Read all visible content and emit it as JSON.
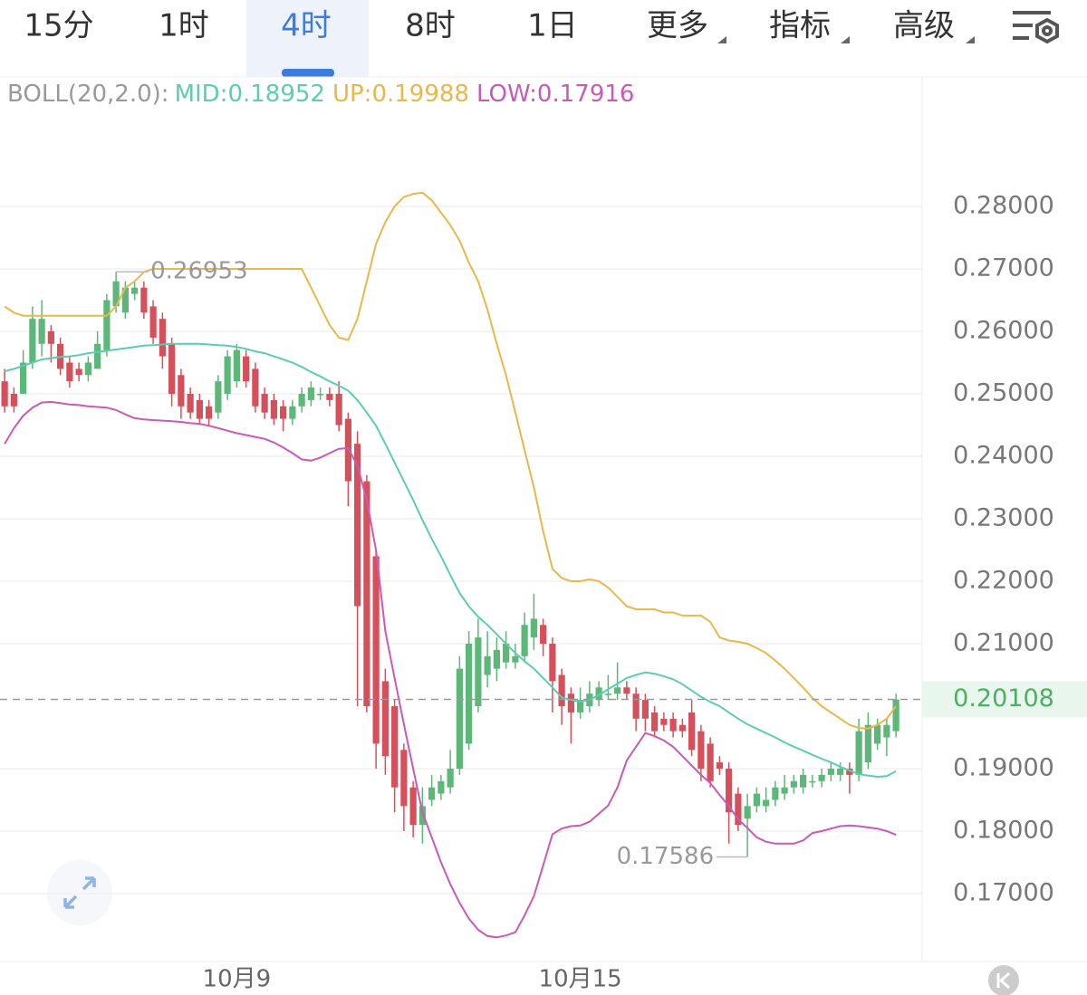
{
  "tabs": {
    "items": [
      "15分",
      "1时",
      "4时",
      "8时",
      "1日",
      "更多",
      "指标",
      "高级"
    ],
    "active": 2
  },
  "chart_data": {
    "type": "candlestick",
    "indicator": "BOLL(20,2.0):",
    "categories": [
      null,
      null,
      null,
      null,
      null,
      null,
      null,
      null,
      null,
      null,
      null,
      null,
      null,
      null,
      null,
      null,
      null,
      null,
      null,
      null,
      null,
      null,
      null,
      null,
      null,
      "10月9",
      null,
      null,
      null,
      null,
      null,
      null,
      null,
      null,
      null,
      null,
      null,
      null,
      null,
      null,
      null,
      null,
      null,
      null,
      null,
      null,
      null,
      null,
      null,
      null,
      null,
      null,
      null,
      null,
      null,
      null,
      null,
      null,
      null,
      null,
      null,
      null,
      "10月15",
      null,
      null,
      null,
      null,
      null,
      null,
      null,
      null,
      null,
      null,
      null,
      null,
      null,
      null,
      null,
      null,
      null,
      null,
      null,
      null,
      null,
      null,
      null,
      null,
      null,
      null,
      null,
      null,
      null,
      null,
      null,
      null,
      null,
      null
    ],
    "open": [
      0.252,
      0.25,
      0.25,
      0.255,
      0.258,
      0.26,
      0.258,
      0.255,
      0.254,
      0.253,
      0.254,
      0.257,
      0.264,
      0.263,
      0.266,
      0.267,
      0.264,
      0.262,
      0.258,
      0.253,
      0.25,
      0.249,
      0.248,
      0.247,
      0.25,
      0.252,
      0.256,
      0.254,
      0.25,
      0.249,
      0.248,
      0.246,
      0.248,
      0.249,
      0.25,
      0.25,
      0.25,
      0.246,
      0.242,
      0.236,
      0.224,
      0.204,
      0.2,
      0.193,
      0.187,
      0.181,
      0.185,
      0.186,
      0.187,
      0.19,
      0.194,
      0.2,
      0.205,
      0.206,
      0.207,
      0.207,
      0.208,
      0.211,
      0.213,
      0.21,
      0.205,
      0.202,
      0.199,
      0.2,
      0.201,
      0.202,
      0.202,
      0.203,
      0.202,
      0.201,
      0.199,
      0.198,
      0.198,
      0.197,
      0.199,
      0.196,
      0.194,
      0.191,
      0.19,
      0.186,
      0.182,
      0.184,
      0.184,
      0.185,
      0.186,
      0.187,
      0.187,
      0.188,
      0.188,
      0.189,
      0.189,
      0.19,
      0.189,
      0.191,
      0.194,
      0.195,
      0.196
    ],
    "high": [
      0.254,
      0.251,
      0.257,
      0.264,
      0.265,
      0.261,
      0.259,
      0.256,
      0.255,
      0.256,
      0.26,
      0.266,
      0.26953,
      0.268,
      0.268,
      0.268,
      0.265,
      0.263,
      0.259,
      0.254,
      0.251,
      0.25,
      0.249,
      0.253,
      0.257,
      0.258,
      0.257,
      0.255,
      0.251,
      0.25,
      0.249,
      0.249,
      0.251,
      0.252,
      0.251,
      0.251,
      0.252,
      0.247,
      0.244,
      0.237,
      0.225,
      0.206,
      0.201,
      0.194,
      0.188,
      0.187,
      0.189,
      0.189,
      0.193,
      0.208,
      0.212,
      0.214,
      0.212,
      0.211,
      0.212,
      0.21,
      0.215,
      0.218,
      0.214,
      0.211,
      0.206,
      0.203,
      0.203,
      0.204,
      0.204,
      0.205,
      0.207,
      0.204,
      0.203,
      0.202,
      0.2,
      0.199,
      0.199,
      0.198,
      0.201,
      0.197,
      0.195,
      0.192,
      0.191,
      0.187,
      0.186,
      0.187,
      0.187,
      0.188,
      0.189,
      0.189,
      0.19,
      0.189,
      0.19,
      0.191,
      0.191,
      0.191,
      0.198,
      0.199,
      0.198,
      0.198,
      0.202
    ],
    "low": [
      0.247,
      0.247,
      0.25,
      0.254,
      0.256,
      0.255,
      0.253,
      0.251,
      0.252,
      0.252,
      0.254,
      0.256,
      0.263,
      0.262,
      0.265,
      0.262,
      0.258,
      0.254,
      0.248,
      0.246,
      0.246,
      0.245,
      0.245,
      0.246,
      0.249,
      0.251,
      0.251,
      0.247,
      0.246,
      0.245,
      0.244,
      0.245,
      0.247,
      0.248,
      0.249,
      0.248,
      0.244,
      0.232,
      0.2,
      0.199,
      0.19,
      0.189,
      0.183,
      0.18,
      0.179,
      0.178,
      0.184,
      0.185,
      0.186,
      0.189,
      0.193,
      0.199,
      0.203,
      0.204,
      0.206,
      0.206,
      0.207,
      0.209,
      0.208,
      0.199,
      0.197,
      0.194,
      0.198,
      0.199,
      0.2,
      0.201,
      0.201,
      0.201,
      0.196,
      0.196,
      0.195,
      0.196,
      0.195,
      0.195,
      0.192,
      0.188,
      0.187,
      0.189,
      0.178,
      0.18,
      0.17586,
      0.183,
      0.183,
      0.184,
      0.185,
      0.186,
      0.186,
      0.187,
      0.187,
      0.188,
      0.188,
      0.186,
      0.188,
      0.19,
      0.193,
      0.192,
      0.195
    ],
    "close": [
      0.248,
      0.248,
      0.255,
      0.262,
      0.262,
      0.258,
      0.254,
      0.252,
      0.253,
      0.255,
      0.258,
      0.265,
      0.268,
      0.267,
      0.267,
      0.263,
      0.259,
      0.256,
      0.25,
      0.248,
      0.247,
      0.246,
      0.246,
      0.252,
      0.256,
      0.257,
      0.252,
      0.248,
      0.247,
      0.246,
      0.246,
      0.248,
      0.25,
      0.251,
      0.25,
      0.249,
      0.245,
      0.236,
      0.216,
      0.2,
      0.194,
      0.192,
      0.187,
      0.184,
      0.181,
      0.184,
      0.187,
      0.188,
      0.19,
      0.206,
      0.21,
      0.211,
      0.208,
      0.209,
      0.21,
      0.208,
      0.213,
      0.214,
      0.21,
      0.204,
      0.2,
      0.199,
      0.201,
      0.202,
      0.203,
      0.202,
      0.203,
      0.202,
      0.198,
      0.198,
      0.196,
      0.197,
      0.196,
      0.196,
      0.193,
      0.19,
      0.188,
      0.19,
      0.183,
      0.181,
      0.184,
      0.186,
      0.185,
      0.187,
      0.187,
      0.188,
      0.189,
      0.188,
      0.189,
      0.19,
      0.19,
      0.189,
      0.196,
      0.197,
      0.197,
      0.197,
      0.20108
    ],
    "up_color": "#5db779",
    "down_color": "#d6505b",
    "series": [
      {
        "name": "MID:0.18952",
        "color": "#5ccdb0",
        "values": [
          0.2536,
          0.254,
          0.2545,
          0.255,
          0.2555,
          0.2557,
          0.2559,
          0.256,
          0.2562,
          0.2565,
          0.2567,
          0.2569,
          0.2571,
          0.2573,
          0.2575,
          0.2577,
          0.2578,
          0.2579,
          0.258,
          0.258,
          0.258,
          0.258,
          0.2579,
          0.2578,
          0.2577,
          0.2575,
          0.2572,
          0.2568,
          0.2565,
          0.256,
          0.2555,
          0.255,
          0.2543,
          0.2535,
          0.2528,
          0.252,
          0.2513,
          0.2505,
          0.249,
          0.247,
          0.2449,
          0.242,
          0.239,
          0.236,
          0.233,
          0.2298,
          0.2268,
          0.224,
          0.221,
          0.2181,
          0.216,
          0.2143,
          0.213,
          0.2115,
          0.21,
          0.2085,
          0.2072,
          0.206,
          0.2045,
          0.203,
          0.2014,
          0.201,
          0.2007,
          0.201,
          0.2018,
          0.2027,
          0.2036,
          0.2045,
          0.205,
          0.2054,
          0.2052,
          0.2048,
          0.2043,
          0.2035,
          0.2025,
          0.2015,
          0.2007,
          0.2,
          0.199,
          0.198,
          0.1971,
          0.1964,
          0.1957,
          0.195,
          0.1942,
          0.1935,
          0.1929,
          0.1922,
          0.1916,
          0.191,
          0.1903,
          0.1897,
          0.1891,
          0.1889,
          0.1887,
          0.1888,
          0.1896
        ]
      },
      {
        "name": "UP:0.19988",
        "color": "#e8b84a",
        "values": [
          0.264,
          0.263,
          0.2625,
          0.2625,
          0.2625,
          0.2625,
          0.2625,
          0.2625,
          0.2625,
          0.2625,
          0.2625,
          0.2625,
          0.264,
          0.267,
          0.268,
          0.2695,
          0.27,
          0.27,
          0.27,
          0.27,
          0.27,
          0.27,
          0.27,
          0.27,
          0.27,
          0.27,
          0.27,
          0.27,
          0.27,
          0.27,
          0.27,
          0.27,
          0.27,
          0.267,
          0.264,
          0.261,
          0.259,
          0.2586,
          0.262,
          0.268,
          0.274,
          0.2775,
          0.28,
          0.2815,
          0.282,
          0.2822,
          0.281,
          0.279,
          0.277,
          0.2745,
          0.271,
          0.268,
          0.2635,
          0.258,
          0.253,
          0.247,
          0.241,
          0.235,
          0.228,
          0.222,
          0.2205,
          0.22,
          0.22,
          0.2203,
          0.22,
          0.219,
          0.2175,
          0.216,
          0.2155,
          0.2155,
          0.2155,
          0.215,
          0.215,
          0.2145,
          0.2145,
          0.2145,
          0.2135,
          0.211,
          0.2105,
          0.2103,
          0.21,
          0.2093,
          0.2085,
          0.2073,
          0.206,
          0.2045,
          0.203,
          0.2013,
          0.2,
          0.199,
          0.198,
          0.197,
          0.1965,
          0.1964,
          0.197,
          0.198,
          0.2
        ]
      },
      {
        "name": "LOW:0.17916",
        "color": "#c95ab6",
        "values": [
          0.242,
          0.2445,
          0.2465,
          0.2478,
          0.2486,
          0.2487,
          0.2485,
          0.2483,
          0.2482,
          0.248,
          0.2479,
          0.2478,
          0.2474,
          0.2467,
          0.2461,
          0.2459,
          0.2458,
          0.2457,
          0.2456,
          0.2455,
          0.2453,
          0.2452,
          0.2449,
          0.2445,
          0.2441,
          0.2437,
          0.2434,
          0.2431,
          0.2428,
          0.2422,
          0.2414,
          0.2405,
          0.2395,
          0.2393,
          0.2398,
          0.2405,
          0.2412,
          0.2413,
          0.2385,
          0.233,
          0.225,
          0.212,
          0.2045,
          0.1971,
          0.19,
          0.183,
          0.179,
          0.175,
          0.1715,
          0.1685,
          0.166,
          0.1642,
          0.1632,
          0.163,
          0.1633,
          0.1638,
          0.1665,
          0.1696,
          0.1745,
          0.1795,
          0.1804,
          0.1808,
          0.1809,
          0.1815,
          0.1828,
          0.1841,
          0.187,
          0.1913,
          0.1935,
          0.1957,
          0.1952,
          0.1945,
          0.1935,
          0.192,
          0.1905,
          0.189,
          0.1877,
          0.1858,
          0.184,
          0.1819,
          0.1805,
          0.179,
          0.1783,
          0.178,
          0.178,
          0.178,
          0.1785,
          0.1797,
          0.18,
          0.1804,
          0.1808,
          0.1809,
          0.1808,
          0.1806,
          0.1804,
          0.18,
          0.1794
        ]
      }
    ],
    "ylim": [
      0.15942,
      0.30072
    ],
    "yticks": [
      {
        "value": 0.28,
        "label": "0.28000"
      },
      {
        "value": 0.27,
        "label": "0.27000"
      },
      {
        "value": 0.26,
        "label": "0.26000"
      },
      {
        "value": 0.25,
        "label": "0.25000"
      },
      {
        "value": 0.24,
        "label": "0.24000"
      },
      {
        "value": 0.23,
        "label": "0.23000"
      },
      {
        "value": 0.22,
        "label": "0.22000"
      },
      {
        "value": 0.21,
        "label": "0.21000"
      },
      {
        "value": 0.19,
        "label": "0.19000"
      },
      {
        "value": 0.18,
        "label": "0.18000"
      },
      {
        "value": 0.17,
        "label": "0.17000"
      }
    ],
    "grid": true
  }
}
